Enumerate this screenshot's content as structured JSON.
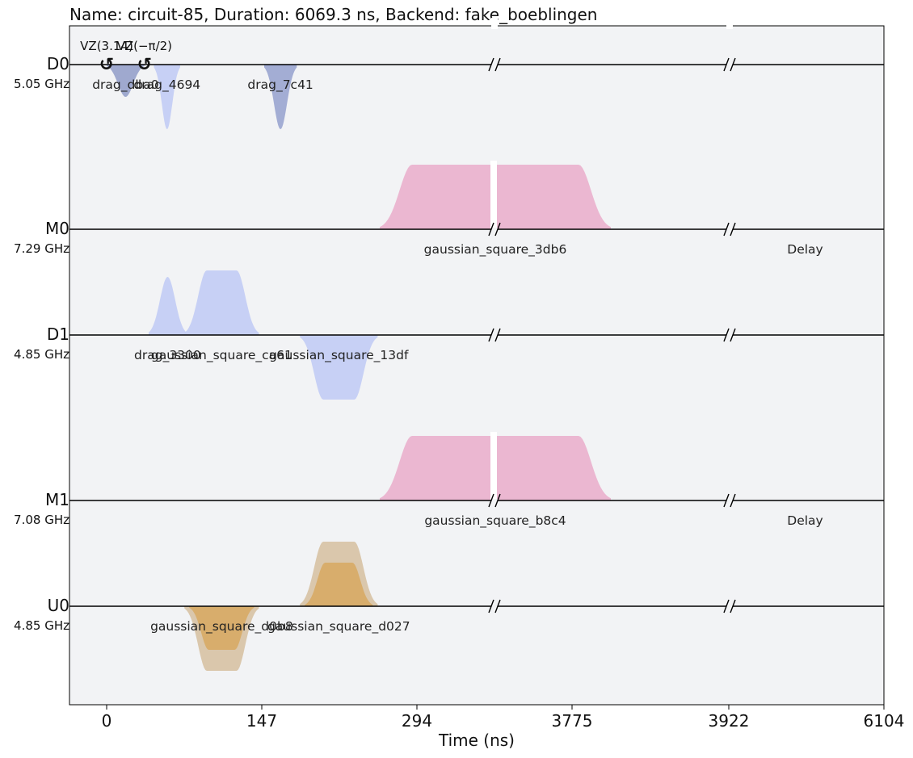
{
  "chart_data": {
    "type": "pulse_schedule",
    "title": "Name: circuit-85, Duration: 6069.3 ns, Backend: fake_boeblingen",
    "xlabel": "Time (ns)",
    "x_ticks": [
      "0",
      "147",
      "294",
      "3775",
      "3922",
      "6104"
    ],
    "channels": [
      {
        "name": "D0",
        "freq": "5.05 GHz"
      },
      {
        "name": "M0",
        "freq": "7.29 GHz"
      },
      {
        "name": "D1",
        "freq": "4.85 GHz"
      },
      {
        "name": "M1",
        "freq": "7.08 GHz"
      },
      {
        "name": "U0",
        "freq": "4.85 GHz"
      }
    ],
    "frame_changes": [
      {
        "channel": "D0",
        "label": "VZ(3.14)",
        "symbol": "↺",
        "t": 0
      },
      {
        "channel": "D0",
        "label": "VZ(−π/2)",
        "symbol": "↺",
        "t": 36
      }
    ],
    "pulses": [
      {
        "channel": "D0",
        "label": "drag_dba0",
        "shape": "gauss",
        "start": 0,
        "end": 36,
        "amp": -0.2,
        "color": "#9aa4cc"
      },
      {
        "channel": "D0",
        "label": "drag_4694",
        "shape": "gauss",
        "start": 45,
        "end": 70,
        "amp": -0.4,
        "color": "#c4cef4"
      },
      {
        "channel": "D0",
        "label": "drag_7c41",
        "shape": "gauss",
        "start": 150,
        "end": 181,
        "amp": -0.4,
        "color": "#9ea9d2"
      },
      {
        "channel": "M0",
        "label": "gaussian_square_3db6",
        "shape": "gsquare",
        "start": 260,
        "end": 480,
        "amp": 0.4,
        "color": "#eab3cf"
      },
      {
        "channel": "M0",
        "label": "Delay",
        "shape": "none",
        "start": 480,
        "end": 850
      },
      {
        "channel": "D1",
        "label": "drag_3300",
        "shape": "gauss",
        "start": 40,
        "end": 76,
        "amp": 0.36,
        "color": "#c4cef4"
      },
      {
        "channel": "D1",
        "label": "gaussian_square_ca61",
        "shape": "gsquare",
        "start": 74,
        "end": 145,
        "amp": 0.4,
        "color": "#c4cef4"
      },
      {
        "channel": "D1",
        "label": "gaussian_square_13df",
        "shape": "gsquare",
        "start": 184,
        "end": 258,
        "amp": -0.4,
        "color": "#c4cef4"
      },
      {
        "channel": "M1",
        "label": "gaussian_square_b8c4",
        "shape": "gsquare",
        "start": 260,
        "end": 480,
        "amp": 0.4,
        "color": "#eab3cf"
      },
      {
        "channel": "M1",
        "label": "Delay",
        "shape": "none",
        "start": 480,
        "end": 850
      },
      {
        "channel": "U0",
        "label": "gaussian_square_d0b8",
        "shape": "gsquare",
        "start": 74,
        "end": 145,
        "amp": -0.4,
        "color": "#d8c4a8",
        "inner_color": "#d8ad6c",
        "inner_amp": -0.27
      },
      {
        "channel": "U0",
        "label": "gaussian_square_d027",
        "shape": "gsquare",
        "start": 184,
        "end": 258,
        "amp": 0.4,
        "color": "#d8c4a8",
        "inner_color": "#d8ad6c",
        "inner_amp": 0.27
      }
    ]
  }
}
